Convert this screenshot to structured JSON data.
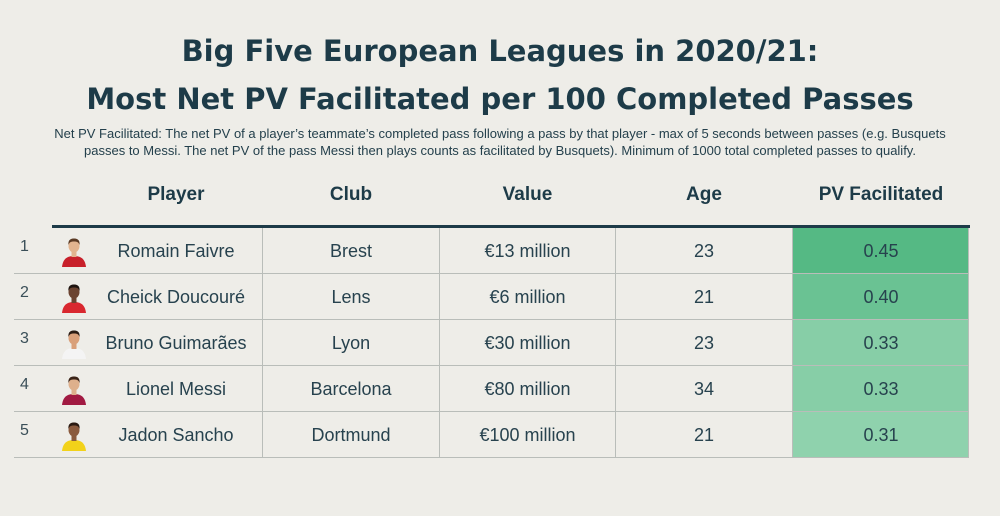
{
  "title_line1": "Big Five European Leagues in 2020/21:",
  "title_line2": "Most Net PV Facilitated per 100 Completed Passes",
  "subtitle_line1": "Net PV Facilitated: The net PV of a player’s teammate’s completed pass following a pass by that player - max of 5 seconds between passes (e.g. Busquets",
  "subtitle_line2": "passes to Messi. The net PV of the pass Messi then plays counts as facilitated by Busquets). Minimum of 1000 total completed passes to qualify.",
  "chart_data": {
    "type": "table",
    "columns": [
      "Player",
      "Club",
      "Value",
      "Age",
      "PV Facilitated"
    ],
    "rows": [
      {
        "rank": "1",
        "player": "Romain Faivre",
        "club": "Brest",
        "value": "€13 million",
        "age": 23,
        "pv": "0.45",
        "pv_num": 0.45
      },
      {
        "rank": "2",
        "player": "Cheick Doucouré",
        "club": "Lens",
        "value": "€6 million",
        "age": 21,
        "pv": "0.40",
        "pv_num": 0.4
      },
      {
        "rank": "3",
        "player": "Bruno Guimarães",
        "club": "Lyon",
        "value": "€30 million",
        "age": 23,
        "pv": "0.33",
        "pv_num": 0.33
      },
      {
        "rank": "4",
        "player": "Lionel Messi",
        "club": "Barcelona",
        "value": "€80 million",
        "age": 34,
        "pv": "0.33",
        "pv_num": 0.33
      },
      {
        "rank": "5",
        "player": "Jadon Sancho",
        "club": "Dortmund",
        "value": "€100 million",
        "age": 21,
        "pv": "0.31",
        "pv_num": 0.31
      }
    ],
    "pv_color_range": [
      "#8fd2ad",
      "#55b984"
    ]
  },
  "avatars": [
    {
      "icon": "player-avatar-icon",
      "shirt": "#c8202a",
      "hair": "#5a3a24",
      "skin": "#e2b48f"
    },
    {
      "icon": "player-avatar-icon",
      "shirt": "#d9282f",
      "hair": "#1d1410",
      "skin": "#6b4330"
    },
    {
      "icon": "player-avatar-icon",
      "shirt": "#f4f4f4",
      "hair": "#2b1c14",
      "skin": "#d9a07a"
    },
    {
      "icon": "player-avatar-icon",
      "shirt": "#a11a42",
      "hair": "#3a2418",
      "skin": "#deb08c"
    },
    {
      "icon": "player-avatar-icon",
      "shirt": "#f2d21a",
      "hair": "#2a1a12",
      "skin": "#8a5a3e"
    }
  ]
}
